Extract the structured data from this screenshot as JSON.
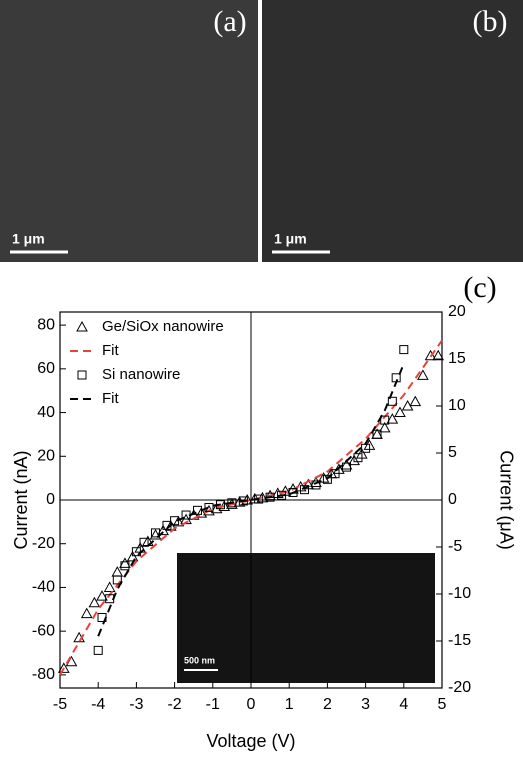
{
  "panels": {
    "a": {
      "label": "(a)",
      "scale": "1 μm"
    },
    "b": {
      "label": "(b)",
      "scale": "1 μm"
    },
    "c": {
      "label": "(c)",
      "inset_scale": "500 nm"
    }
  },
  "chart_data": {
    "type": "line",
    "xlabel": "Voltage (V)",
    "ylabel": "Current (nA)",
    "y2label": "Current (μA)",
    "xlim": [
      -5,
      5
    ],
    "xticks": [
      -5,
      -4,
      -3,
      -2,
      -1,
      0,
      1,
      2,
      3,
      4,
      5
    ],
    "ylim": [
      -86,
      86
    ],
    "yticks": [
      -80,
      -60,
      -40,
      -20,
      0,
      20,
      40,
      60,
      80
    ],
    "y2lim": [
      -20,
      20
    ],
    "y2ticks": [
      -20,
      -15,
      -10,
      -5,
      0,
      5,
      10,
      15,
      20
    ],
    "legend": "upper left",
    "series": [
      {
        "name": "Ge/SiOx nanowire",
        "marker": "triangle",
        "color": "#000000",
        "axis": "y",
        "x": [
          -4.9,
          -4.7,
          -4.5,
          -4.3,
          -4.1,
          -3.9,
          -3.7,
          -3.5,
          -3.3,
          -3.1,
          -2.9,
          -2.7,
          -2.5,
          -2.3,
          -2.1,
          -1.9,
          -1.7,
          -1.5,
          -1.3,
          -1.1,
          -0.9,
          -0.7,
          -0.5,
          -0.3,
          -0.1,
          0.1,
          0.3,
          0.5,
          0.7,
          0.9,
          1.1,
          1.3,
          1.5,
          1.7,
          1.9,
          2.1,
          2.3,
          2.5,
          2.7,
          2.9,
          3.1,
          3.3,
          3.5,
          3.7,
          3.9,
          4.1,
          4.3,
          4.5,
          4.7,
          4.9
        ],
        "values": [
          -77,
          -74,
          -63,
          -52,
          -47,
          -44,
          -40,
          -33,
          -29,
          -26,
          -22,
          -19,
          -16,
          -14,
          -12,
          -10,
          -9,
          -7,
          -6,
          -5,
          -4,
          -3,
          -2,
          -1,
          0,
          0.5,
          1,
          2,
          3,
          4,
          5,
          6,
          7,
          8,
          10,
          12,
          14,
          16,
          18,
          21,
          25,
          30,
          33,
          37,
          40,
          43,
          45,
          57,
          66,
          66
        ]
      },
      {
        "name": "Fit",
        "line": "dashed",
        "color": "#e8423a",
        "axis": "y",
        "x": [
          -5,
          -4,
          -3,
          -2,
          -1,
          0,
          1,
          2,
          3,
          4,
          5
        ],
        "values": [
          -80,
          -50,
          -28,
          -13,
          -4,
          0,
          4,
          13,
          28,
          48,
          73
        ]
      },
      {
        "name": "Si nanowire",
        "marker": "square",
        "color": "#000000",
        "axis": "y2",
        "x": [
          -4.0,
          -3.9,
          -3.7,
          -3.5,
          -3.3,
          -3.0,
          -2.8,
          -2.5,
          -2.2,
          -2.0,
          -1.7,
          -1.4,
          -1.1,
          -0.8,
          -0.5,
          -0.2,
          0.2,
          0.5,
          0.8,
          1.1,
          1.4,
          1.7,
          2.0,
          2.2,
          2.5,
          2.8,
          3.0,
          3.3,
          3.5,
          3.7,
          3.8,
          4.0
        ],
        "values": [
          -16,
          -12.5,
          -10.5,
          -8.5,
          -7,
          -5.5,
          -4.5,
          -3.5,
          -2.7,
          -2.2,
          -1.6,
          -1.1,
          -0.8,
          -0.5,
          -0.3,
          -0.1,
          0.1,
          0.3,
          0.5,
          0.8,
          1.1,
          1.6,
          2.2,
          2.8,
          3.5,
          4.5,
          5.5,
          7,
          8.5,
          10.5,
          13,
          16
        ]
      },
      {
        "name": "Fit",
        "line": "dashed",
        "color": "#000000",
        "axis": "y2",
        "x": [
          -4,
          -3.5,
          -3,
          -2,
          -1,
          0,
          1,
          2,
          3,
          3.5,
          4
        ],
        "values": [
          -14.5,
          -9.5,
          -6,
          -2.3,
          -0.6,
          0,
          0.6,
          2.3,
          6,
          9.5,
          14.5
        ]
      }
    ]
  }
}
